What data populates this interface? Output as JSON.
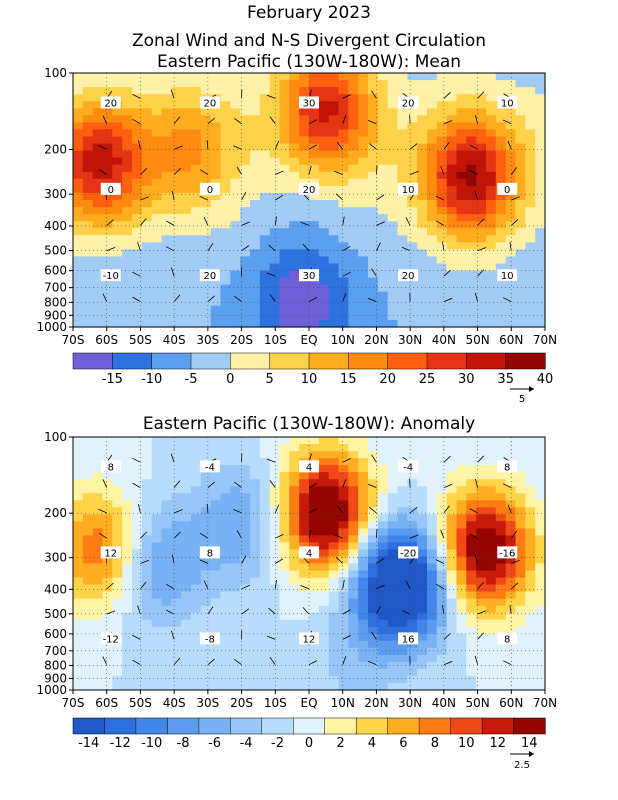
{
  "figure": {
    "title_line1": "February 2023",
    "title_line2": "Zonal Wind and N-S Divergent Circulation",
    "title_line3": "Eastern Pacific (130W-180W): Mean",
    "title_panel2": "Eastern Pacific (130W-180W): Anomaly"
  },
  "chart_data": [
    {
      "type": "heatmap",
      "title": "Eastern Pacific (130W-180W): Mean",
      "x_ticks": [
        "70S",
        "60S",
        "50S",
        "40S",
        "30S",
        "20S",
        "10S",
        "EQ",
        "10N",
        "20N",
        "30N",
        "40N",
        "50N",
        "60N",
        "70N"
      ],
      "y_ticks": [
        "100",
        "200",
        "300",
        "400",
        "500",
        "600",
        "700",
        "800",
        "900",
        "1000"
      ],
      "y_scale": "log-pressure",
      "xlim": [
        -70,
        70
      ],
      "ylim": [
        1000,
        100
      ],
      "colorbar": {
        "levels": [
          -15,
          -10,
          -5,
          0,
          5,
          10,
          15,
          20,
          25,
          30,
          35,
          40
        ],
        "labels": [
          "-15",
          "-10",
          "-5",
          "0",
          "5",
          "10",
          "15",
          "20",
          "25",
          "30",
          "35",
          "40"
        ],
        "colors": [
          "#7060d8",
          "#2e72e0",
          "#5aa0ee",
          "#a2ccf6",
          "#fff2a8",
          "#ffd24a",
          "#ffac1e",
          "#ff8a12",
          "#ff6010",
          "#e43414",
          "#c01408",
          "#900600"
        ]
      },
      "vector_reference": "5",
      "contour_labels": [
        "20",
        "20",
        "30",
        "20",
        "10",
        "0",
        "0",
        "20",
        "10",
        "0",
        "-10",
        "20",
        "30",
        "20",
        "10"
      ],
      "features": [
        {
          "x": -62,
          "p": 230,
          "value": 32
        },
        {
          "x": -35,
          "p": 200,
          "value": 15
        },
        {
          "x": 5,
          "p": 140,
          "value": 32
        },
        {
          "x": 48,
          "p": 260,
          "value": 36
        },
        {
          "x": -2,
          "p": 780,
          "value": -14
        },
        {
          "x": 0,
          "p": 250,
          "value": -3
        }
      ]
    },
    {
      "type": "heatmap",
      "title": "Eastern Pacific (130W-180W): Anomaly",
      "x_ticks": [
        "70S",
        "60S",
        "50S",
        "40S",
        "30S",
        "20S",
        "10S",
        "EQ",
        "10N",
        "20N",
        "30N",
        "40N",
        "50N",
        "60N",
        "70N"
      ],
      "y_ticks": [
        "100",
        "200",
        "300",
        "400",
        "500",
        "600",
        "700",
        "800",
        "900",
        "1000"
      ],
      "y_scale": "log-pressure",
      "xlim": [
        -70,
        70
      ],
      "ylim": [
        1000,
        100
      ],
      "colorbar": {
        "levels": [
          -14,
          -12,
          -10,
          -8,
          -6,
          -4,
          -2,
          0,
          2,
          4,
          6,
          8,
          10,
          12,
          14
        ],
        "labels": [
          "-14",
          "-12",
          "-10",
          "-8",
          "-6",
          "-4",
          "-2",
          "0",
          "2",
          "4",
          "6",
          "8",
          "10",
          "12",
          "14"
        ],
        "colors": [
          "#2058c8",
          "#2e6ede",
          "#4286ea",
          "#5c9cf0",
          "#78b2f4",
          "#98c6f8",
          "#b8dcfc",
          "#e0f2fc",
          "#fff4a4",
          "#ffd448",
          "#ffae22",
          "#ff7c14",
          "#f04816",
          "#c81a0a",
          "#960600"
        ]
      },
      "vector_reference": "2.5",
      "contour_labels": [
        "8",
        "-4",
        "4",
        "-4",
        "8",
        "12",
        "8",
        "4",
        "-20",
        "-16",
        "-12",
        "-8",
        "12",
        "16",
        "8"
      ],
      "features": [
        {
          "x": -62,
          "p": 280,
          "value": 10
        },
        {
          "x": -45,
          "p": 320,
          "value": -7
        },
        {
          "x": -20,
          "p": 220,
          "value": -6
        },
        {
          "x": 5,
          "p": 200,
          "value": 18
        },
        {
          "x": 27,
          "p": 380,
          "value": -20
        },
        {
          "x": 52,
          "p": 280,
          "value": 17
        },
        {
          "x": 12,
          "p": 800,
          "value": -2
        }
      ]
    }
  ]
}
